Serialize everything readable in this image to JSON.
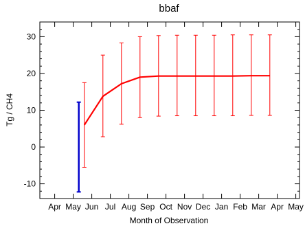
{
  "chart_data": {
    "type": "line",
    "title": "bbaf",
    "xlabel": "Month of Observation",
    "ylabel": "Tg / CH4",
    "ylim": [
      -14,
      34
    ],
    "yticks": [
      -10,
      0,
      10,
      20,
      30
    ],
    "ytick_labels": [
      "-10",
      "0",
      "10",
      "20",
      "30"
    ],
    "xlim": [
      -0.8,
      13.2
    ],
    "categories": [
      "Apr",
      "May",
      "Jun",
      "Jul",
      "Aug",
      "Sep",
      "Oct",
      "Nov",
      "Dec",
      "Jan",
      "Feb",
      "Mar",
      "Apr",
      "May"
    ],
    "grid": false,
    "series": [
      {
        "color": "#ff0000",
        "x": [
          1.6,
          2.6,
          3.6,
          4.6,
          5.6,
          6.6,
          7.6,
          8.6,
          9.6,
          10.6,
          11.6
        ],
        "y": [
          6,
          13.8,
          17.2,
          19.0,
          19.3,
          19.3,
          19.3,
          19.3,
          19.3,
          19.4,
          19.4
        ],
        "err_low": [
          -5.5,
          2.8,
          6.2,
          8.0,
          8.4,
          8.5,
          8.5,
          8.5,
          8.5,
          8.6,
          8.6
        ],
        "err_high": [
          17.5,
          25.0,
          28.3,
          30.0,
          30.3,
          30.4,
          30.4,
          30.4,
          30.5,
          30.5,
          30.5
        ]
      }
    ],
    "range_markers": [
      {
        "color": "#0000cc",
        "x": 1.3,
        "low": -12.2,
        "high": 12.2
      }
    ]
  }
}
